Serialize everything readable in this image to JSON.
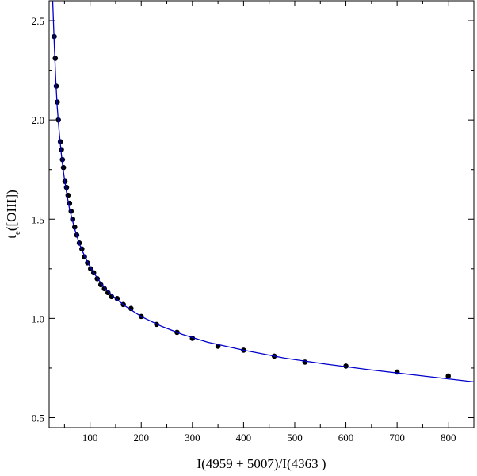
{
  "chart_data": {
    "type": "scatter",
    "xlabel": "I(4959 + 5007)/I(4363 )",
    "ylabel_main": "t",
    "ylabel_sub": "e",
    "ylabel_rest": "([OIII])",
    "xlim": [
      20,
      850
    ],
    "ylim": [
      0.45,
      2.6
    ],
    "x_ticks": [
      100,
      200,
      300,
      400,
      500,
      600,
      700,
      800
    ],
    "y_ticks": [
      0.5,
      1.0,
      1.5,
      2.0,
      2.5
    ],
    "x_tick_labels": [
      "100",
      "200",
      "300",
      "400",
      "500",
      "600",
      "700",
      "800"
    ],
    "y_tick_labels": [
      "0.5",
      "1.0",
      "1.5",
      "2.0",
      "2.5"
    ],
    "grid": false,
    "series": [
      {
        "style": "points",
        "color": "#000000",
        "x": [
          30,
          32,
          34,
          36,
          38,
          42,
          44,
          46,
          48,
          51,
          54,
          57,
          60,
          63,
          66,
          70,
          74,
          79,
          84,
          89,
          95,
          101,
          107,
          114,
          121,
          128,
          135,
          142,
          153,
          165,
          180,
          200,
          230,
          270,
          300,
          350,
          400,
          460,
          520,
          600,
          700,
          800
        ],
        "y": [
          2.42,
          2.31,
          2.17,
          2.09,
          2.0,
          1.89,
          1.85,
          1.8,
          1.76,
          1.69,
          1.66,
          1.62,
          1.58,
          1.54,
          1.5,
          1.46,
          1.42,
          1.38,
          1.35,
          1.31,
          1.28,
          1.25,
          1.23,
          1.2,
          1.17,
          1.15,
          1.13,
          1.11,
          1.1,
          1.07,
          1.05,
          1.01,
          0.97,
          0.93,
          0.9,
          0.86,
          0.84,
          0.81,
          0.78,
          0.76,
          0.73,
          0.71
        ]
      },
      {
        "style": "line",
        "color": "#0000cc",
        "x": [
          27,
          30,
          33,
          36,
          40,
          45,
          50,
          55,
          60,
          70,
          80,
          90,
          100,
          115,
          130,
          150,
          170,
          200,
          240,
          280,
          330,
          400,
          480,
          560,
          650,
          750,
          850
        ],
        "y": [
          2.6,
          2.38,
          2.2,
          2.06,
          1.93,
          1.8,
          1.7,
          1.62,
          1.55,
          1.45,
          1.37,
          1.31,
          1.26,
          1.2,
          1.15,
          1.1,
          1.06,
          1.01,
          0.96,
          0.92,
          0.88,
          0.84,
          0.8,
          0.77,
          0.74,
          0.71,
          0.68
        ]
      }
    ]
  }
}
